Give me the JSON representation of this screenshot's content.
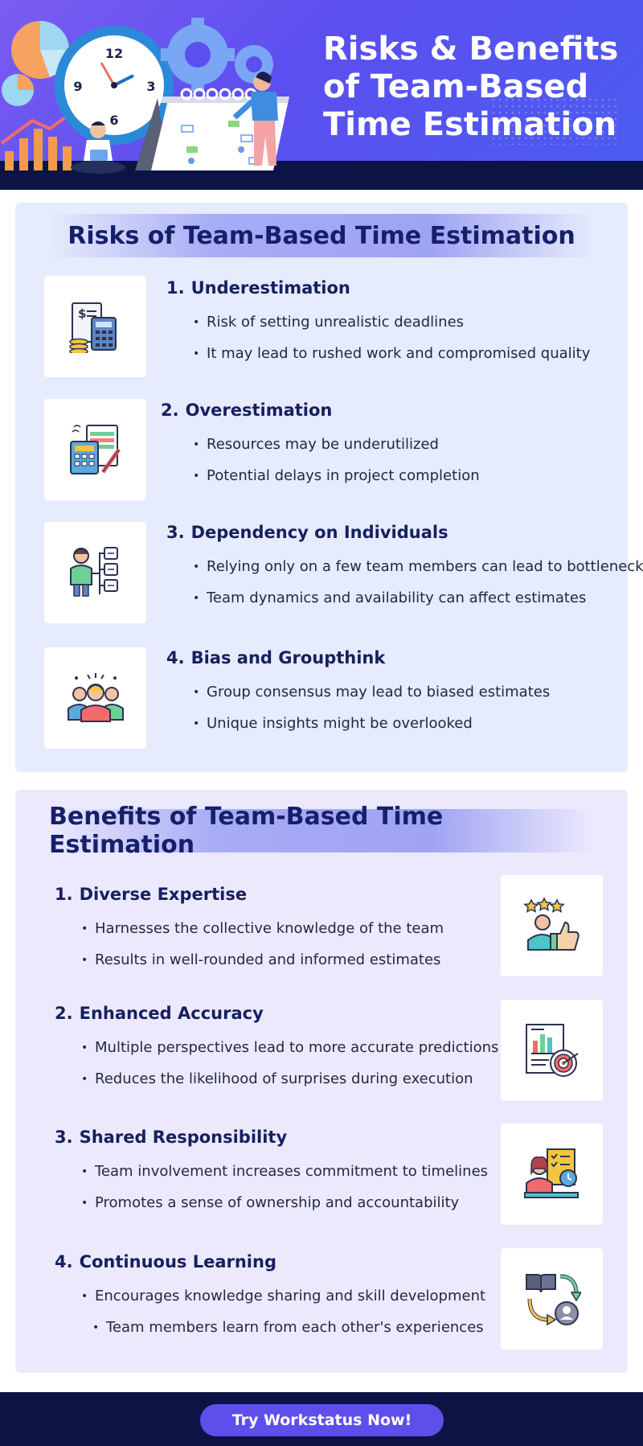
{
  "header": {
    "title": "Risks & Benefits of Team-Based Time Estimation",
    "clock_numbers": [
      "12",
      "3",
      "6",
      "9"
    ]
  },
  "risks": {
    "heading": "Risks of Team-Based Time Estimation",
    "items": [
      {
        "num": "1.",
        "title": "Underestimation",
        "icon": "budget-calculator-icon",
        "bullets": [
          "Risk of setting unrealistic deadlines",
          "It may lead to rushed work and compromised quality"
        ]
      },
      {
        "num": "2.",
        "title": "Overestimation",
        "icon": "calculator-spreadsheet-icon",
        "bullets": [
          "Resources may be underutilized",
          "Potential delays in project completion"
        ]
      },
      {
        "num": "3.",
        "title": "Dependency on Individuals",
        "icon": "person-hierarchy-icon",
        "bullets": [
          "Relying only on a few team members can lead to bottlenecks",
          "Team dynamics and availability can affect estimates"
        ]
      },
      {
        "num": "4.",
        "title": "Bias and Groupthink",
        "icon": "group-people-icon",
        "bullets": [
          "Group consensus may lead to biased estimates",
          "Unique insights might be overlooked"
        ]
      }
    ]
  },
  "benefits": {
    "heading": "Benefits of Team-Based Time Estimation",
    "items": [
      {
        "num": "1.",
        "title": "Diverse Expertise",
        "icon": "star-rating-thumbs-up-icon",
        "bullets": [
          "Harnesses the collective knowledge of the team",
          "Results in well-rounded and informed estimates"
        ]
      },
      {
        "num": "2.",
        "title": "Enhanced Accuracy",
        "icon": "report-target-icon",
        "bullets": [
          "Multiple perspectives lead to more accurate predictions",
          "Reduces the likelihood of surprises during execution"
        ]
      },
      {
        "num": "3.",
        "title": "Shared Responsibility",
        "icon": "person-checklist-clock-icon",
        "bullets": [
          "Team involvement increases commitment to timelines",
          "Promotes a sense of ownership and accountability"
        ]
      },
      {
        "num": "4.",
        "title": "Continuous Learning",
        "icon": "book-cycle-person-icon",
        "bullets": [
          "Encourages knowledge sharing and skill development",
          "Team members learn from each other's experiences"
        ]
      }
    ]
  },
  "footer": {
    "cta_label": "Try Workstatus Now!"
  },
  "colors": {
    "header_gradient_start": "#7a5cf0",
    "header_gradient_end": "#4a5df0",
    "navy": "#0c1445",
    "risks_bg": "#e6ebfd",
    "benefits_bg": "#ece9fd",
    "heading_text": "#16206a",
    "cta_bg": "#5e4fea"
  }
}
